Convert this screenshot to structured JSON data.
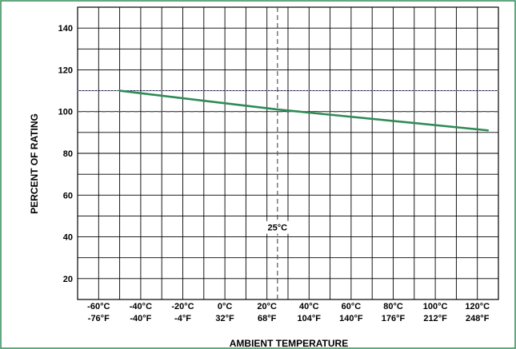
{
  "chart_data": {
    "type": "line",
    "xlabel": "AMBIENT TEMPERATURE",
    "ylabel": "PERCENT OF RATING",
    "x_ticks_c": [
      "-60°C",
      "-40°C",
      "-20°C",
      "0°C",
      "20°C",
      "40°C",
      "60°C",
      "80°C",
      "100°C",
      "120°C"
    ],
    "x_ticks_f": [
      "-76°F",
      "-40°F",
      "-4°F",
      "32°F",
      "68°F",
      "104°F",
      "140°F",
      "176°F",
      "212°F",
      "248°F"
    ],
    "x_tick_values": [
      -60,
      -40,
      -20,
      0,
      20,
      40,
      60,
      80,
      100,
      120
    ],
    "y_ticks": [
      "20",
      "40",
      "60",
      "80",
      "100",
      "120",
      "140"
    ],
    "y_tick_values": [
      20,
      40,
      60,
      80,
      100,
      120,
      140
    ],
    "xlim": [
      -70,
      130
    ],
    "ylim": [
      10,
      150
    ],
    "grid": true,
    "series": [
      {
        "x": [
          -50,
          25,
          125
        ],
        "values": [
          110,
          101,
          91
        ]
      }
    ],
    "annotations": [
      {
        "label": "25°C",
        "x": 25,
        "y": 43
      }
    ],
    "reference_lines": [
      {
        "orientation": "horizontal",
        "value": 100,
        "style": "dashed"
      },
      {
        "orientation": "horizontal",
        "value": 110,
        "style": "dotted"
      },
      {
        "orientation": "vertical",
        "value": 25,
        "style": "dashed"
      }
    ],
    "colors": {
      "series": "#2e8b57",
      "grid": "#000000",
      "border": "#2e8b57"
    }
  }
}
